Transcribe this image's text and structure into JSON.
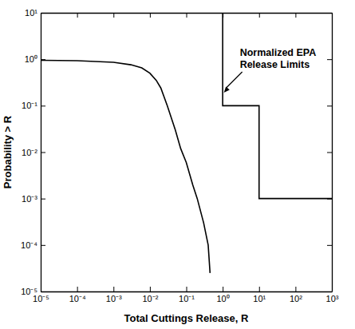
{
  "chart_data": {
    "type": "line",
    "log": true,
    "x_label": "Total Cuttings Release, R",
    "y_label": "Probability > R",
    "xlim": [
      1e-05,
      1000
    ],
    "ylim": [
      1e-05,
      10
    ],
    "xticks": [
      {
        "value": 1e-05,
        "label": "10⁻⁵"
      },
      {
        "value": 0.0001,
        "label": "10⁻⁴"
      },
      {
        "value": 0.001,
        "label": "10⁻³"
      },
      {
        "value": 0.01,
        "label": "10⁻²"
      },
      {
        "value": 0.1,
        "label": "10⁻¹"
      },
      {
        "value": 1,
        "label": "10⁰"
      },
      {
        "value": 10,
        "label": "10¹"
      },
      {
        "value": 100,
        "label": "10²"
      },
      {
        "value": 1000,
        "label": "10³"
      }
    ],
    "yticks": [
      {
        "value": 1e-05,
        "label": "10⁻⁵"
      },
      {
        "value": 0.0001,
        "label": "10⁻⁴"
      },
      {
        "value": 0.001,
        "label": "10⁻³"
      },
      {
        "value": 0.01,
        "label": "10⁻²"
      },
      {
        "value": 0.1,
        "label": "10⁻¹"
      },
      {
        "value": 1,
        "label": "10⁰"
      },
      {
        "value": 10,
        "label": "10¹"
      }
    ],
    "series": [
      {
        "color": "#000000",
        "x": [
          1e-05,
          0.0001,
          0.001,
          0.003,
          0.006,
          0.01,
          0.015,
          0.02,
          0.03,
          0.05,
          0.07,
          0.1,
          0.15,
          0.2,
          0.3,
          0.4,
          0.45
        ],
        "values": [
          0.95,
          0.93,
          0.86,
          0.76,
          0.65,
          0.5,
          0.35,
          0.24,
          0.1,
          0.03,
          0.012,
          0.006,
          0.002,
          0.001,
          0.0003,
          0.0001,
          2.5e-05
        ]
      },
      {
        "color": "#000000",
        "x": [
          1,
          1,
          10,
          10,
          1000
        ],
        "values": [
          10,
          0.1,
          0.1,
          0.001,
          0.001
        ]
      }
    ],
    "annotation": [
      "Normalized EPA",
      "Release Limits"
    ]
  }
}
